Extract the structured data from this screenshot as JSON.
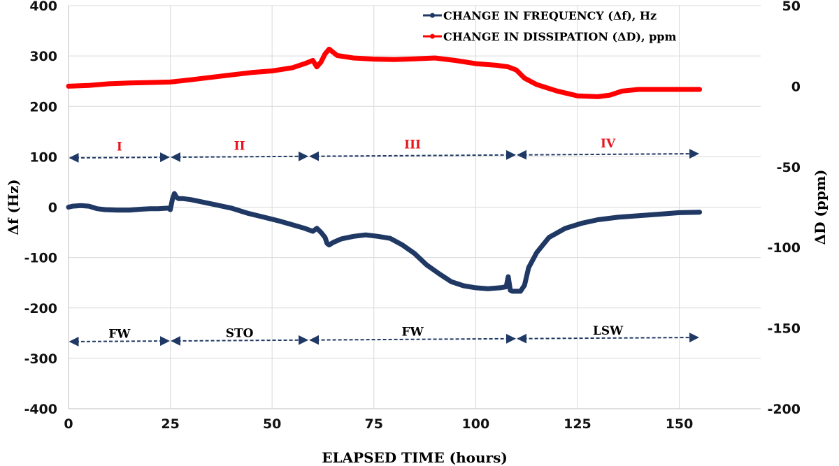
{
  "chart_data": {
    "type": "line",
    "xlabel": "ELAPSED TIME  (hours)",
    "ylabel_left": "Δf (Hz)",
    "ylabel_right": "ΔD (ppm)",
    "xlim": [
      0,
      170
    ],
    "ylim_left": [
      -400,
      400
    ],
    "ylim_right": [
      -200,
      50
    ],
    "x_ticks": [
      0,
      25,
      50,
      75,
      100,
      125,
      150
    ],
    "y_left_ticks": [
      400,
      300,
      200,
      100,
      0,
      -100,
      -200,
      -300,
      -400
    ],
    "y_right_ticks": [
      50,
      0,
      -50,
      -100,
      -150,
      -200
    ],
    "grid": true,
    "legend_position": "top-right",
    "series": [
      {
        "name": "CHANGE IN FREQUENCY (Δf), Hz",
        "axis": "left",
        "color": "#1f3864",
        "x": [
          0,
          1,
          3,
          5,
          7,
          9,
          12,
          15,
          18,
          20,
          22,
          24.5,
          25,
          25.5,
          26,
          26.5,
          27,
          28,
          30,
          33,
          36,
          40,
          44,
          48,
          52,
          55,
          58,
          60,
          61,
          62,
          63,
          63.5,
          64,
          65,
          67,
          70,
          73,
          76,
          79,
          82,
          85,
          88,
          91,
          94,
          97,
          100,
          103,
          106,
          107.5,
          108,
          108.5,
          109,
          111,
          112,
          113,
          115,
          118,
          122,
          126,
          130,
          135,
          140,
          145,
          150,
          155
        ],
        "y": [
          0,
          2,
          3,
          2,
          -3,
          -5,
          -6,
          -6,
          -4,
          -3,
          -3,
          -2,
          -5,
          15,
          27,
          20,
          17,
          17,
          15,
          10,
          5,
          -2,
          -12,
          -20,
          -28,
          -35,
          -42,
          -48,
          -42,
          -50,
          -60,
          -72,
          -75,
          -70,
          -63,
          -58,
          -55,
          -58,
          -62,
          -75,
          -92,
          -115,
          -132,
          -148,
          -156,
          -160,
          -162,
          -160,
          -158,
          -138,
          -165,
          -167,
          -167,
          -155,
          -120,
          -90,
          -60,
          -42,
          -32,
          -25,
          -20,
          -17,
          -14,
          -11,
          -10
        ]
      },
      {
        "name": "CHANGE IN DISSIPATION (ΔD), ppm",
        "axis": "right",
        "color": "#ff0000",
        "x": [
          0,
          5,
          10,
          15,
          20,
          25,
          30,
          35,
          40,
          45,
          50,
          55,
          58,
          60,
          61,
          62,
          63,
          64,
          66,
          70,
          75,
          80,
          85,
          90,
          95,
          100,
          105,
          108,
          110,
          112,
          115,
          120,
          125,
          130,
          133,
          136,
          140,
          145,
          150,
          155
        ],
        "y": [
          0,
          0.5,
          1.5,
          2,
          2.3,
          2.6,
          4,
          5.5,
          7,
          8.5,
          9.5,
          11.5,
          14,
          16,
          12,
          15,
          20,
          23,
          19,
          17.5,
          16.8,
          16.5,
          17,
          17.5,
          16,
          14,
          13,
          12,
          10,
          5,
          1,
          -3,
          -6,
          -6.5,
          -5.5,
          -3,
          -2,
          -2,
          -2,
          -2
        ]
      }
    ],
    "phases": [
      {
        "label": "I",
        "start": 0,
        "end": 25
      },
      {
        "label": "II",
        "start": 25,
        "end": 59
      },
      {
        "label": "III",
        "start": 59,
        "end": 110
      },
      {
        "label": "IV",
        "start": 110,
        "end": 155
      }
    ],
    "conditions": [
      {
        "label": "FW",
        "start": 0,
        "end": 25
      },
      {
        "label": "STO",
        "start": 25,
        "end": 59
      },
      {
        "label": "FW",
        "start": 59,
        "end": 110
      },
      {
        "label": "LSW",
        "start": 110,
        "end": 155
      }
    ]
  },
  "colors": {
    "frequency": "#1f3864",
    "dissipation": "#ff0000",
    "phase_text": "#e8141b",
    "arrow": "#1f3864",
    "grid": "#d9d9d9"
  }
}
